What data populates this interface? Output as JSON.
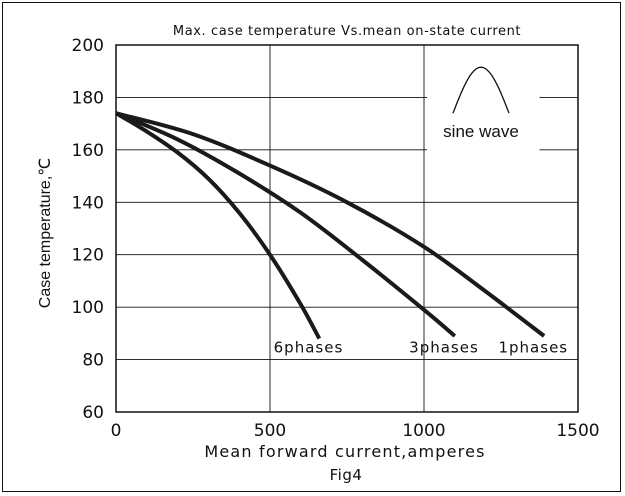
{
  "chart_data": {
    "type": "line",
    "title": "Max. case temperature Vs.mean on-state current",
    "xlabel": "Mean forward current,amperes",
    "ylabel": "Case temperature,℃",
    "caption": "Fig4",
    "xlim": [
      0,
      1500
    ],
    "ylim": [
      60,
      200
    ],
    "xticks": [
      "0",
      "500",
      "1000",
      "1500"
    ],
    "yticks": [
      "60",
      "80",
      "100",
      "120",
      "140",
      "160",
      "180",
      "200"
    ],
    "grid": true,
    "inset": {
      "label": "sine wave",
      "icon": "sine-half-wave-icon"
    },
    "series": [
      {
        "name": "6phases",
        "x": [
          0,
          100,
          200,
          300,
          400,
          500,
          600,
          660
        ],
        "y": [
          174,
          167,
          159,
          149,
          136,
          120,
          101,
          88
        ]
      },
      {
        "name": "3phases",
        "x": [
          0,
          200,
          400,
          600,
          800,
          1000,
          1100
        ],
        "y": [
          174,
          164,
          151,
          136,
          118,
          99,
          89
        ]
      },
      {
        "name": "1phases",
        "x": [
          0,
          250,
          500,
          750,
          1000,
          1200,
          1390
        ],
        "y": [
          174,
          166,
          154,
          140,
          123,
          106,
          89
        ]
      }
    ]
  }
}
